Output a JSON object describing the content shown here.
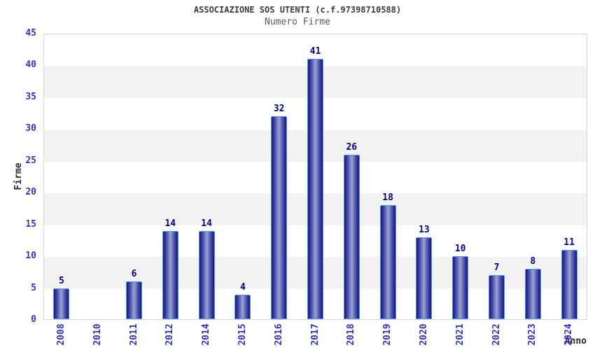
{
  "chart_data": {
    "type": "bar",
    "title": "ASSOCIAZIONE SOS UTENTI (c.f.97398710588)",
    "subtitle": "Numero Firme",
    "xlabel": "Anno",
    "ylabel": "Firme",
    "categories": [
      "2008",
      "2010",
      "2011",
      "2012",
      "2014",
      "2015",
      "2016",
      "2017",
      "2018",
      "2019",
      "2020",
      "2021",
      "2022",
      "2023",
      "2024"
    ],
    "values": [
      5,
      0,
      6,
      14,
      14,
      4,
      32,
      41,
      26,
      18,
      13,
      10,
      7,
      8,
      11
    ],
    "ylim": [
      0,
      45
    ],
    "yticks": [
      0,
      5,
      10,
      15,
      20,
      25,
      30,
      35,
      40,
      45
    ],
    "grid": "alternating-horizontal-bands",
    "legend": "none",
    "value_labels_shown": true,
    "x_tick_rotation_deg": -90,
    "colors": {
      "bar_edge_dark": "#17177c",
      "bar_mid": "#3c3f9e",
      "bar_center_light": "#9aa3d8",
      "bar_border": "#4d9bf5",
      "tick_label": "#3333cc",
      "value_label": "#00008b",
      "title": "#3a3a3a",
      "subtitle": "#5a5a5a",
      "axis_title": "#2b2b2b",
      "band_gray": "#f2f2f2",
      "plot_border": "#d5d5d5",
      "background": "#ffffff"
    }
  }
}
